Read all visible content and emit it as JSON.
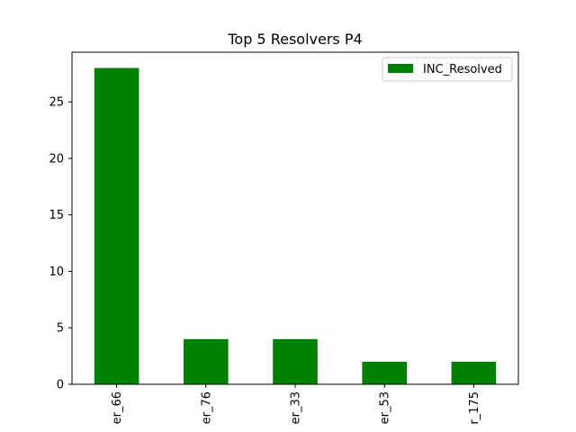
{
  "chart_data": {
    "type": "bar",
    "title": "Top 5 Resolvers P4",
    "xlabel": "",
    "ylabel": "",
    "categories": [
      "er_66",
      "er_76",
      "er_33",
      "er_53",
      "r_175"
    ],
    "series": [
      {
        "name": "INC_Resolved",
        "values": [
          28,
          4,
          4,
          2,
          2
        ]
      }
    ],
    "ylim": [
      0,
      29.4
    ],
    "yticks": [
      0,
      5,
      10,
      15,
      20,
      25
    ],
    "grid": false,
    "legend_position": "top-right",
    "bar_color": "#008000"
  }
}
